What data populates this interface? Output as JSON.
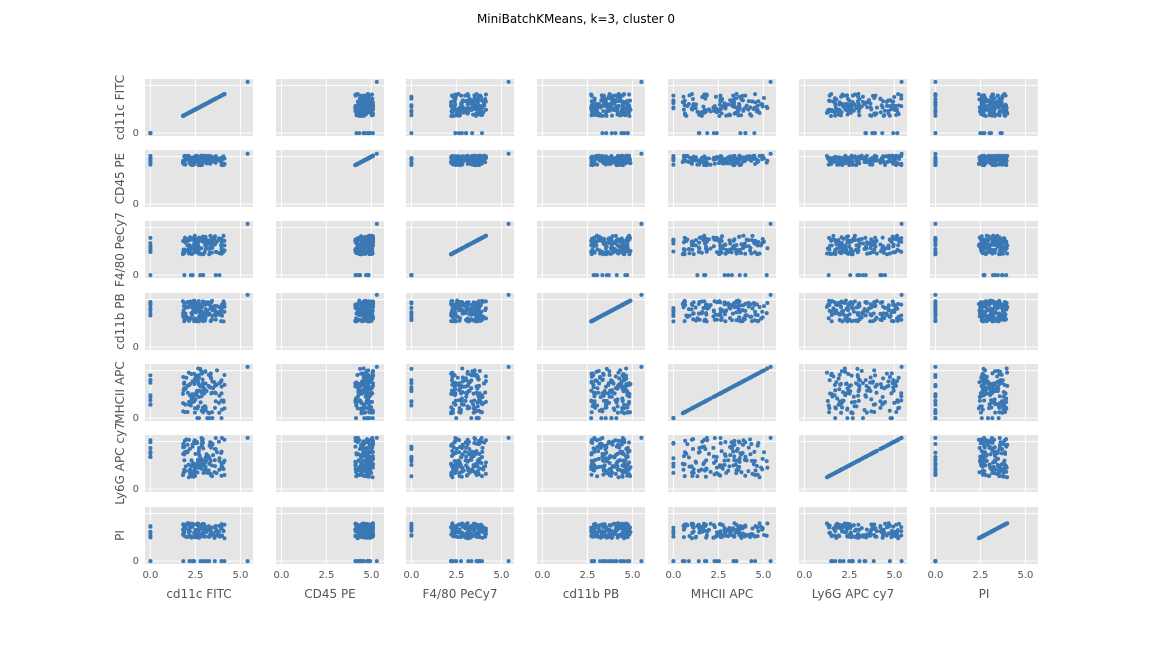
{
  "title": "MiniBatchKMeans, k=3, cluster 0",
  "variables": [
    "cd11c FITC",
    "CD45 PE",
    "F4/80 PeCy7",
    "cd11b PB",
    "MHCII APC",
    "Ly6G APC cy7",
    "PI"
  ],
  "colors": {
    "point": "#3a78b5",
    "panel": "#e5e5e5",
    "grid": "#ffffff",
    "text": "#555555"
  },
  "chart_data": {
    "type": "scatter",
    "subtype": "scatter-matrix",
    "title": "MiniBatchKMeans, k=3, cluster 0",
    "x_ticks": {
      "cd11c FITC": [
        "0.0",
        "2.5",
        "5.0"
      ],
      "CD45 PE": [
        "0.0",
        "2.5",
        "5.0"
      ],
      "F4/80 PeCy7": [
        "0.0",
        "2.5",
        "5.0"
      ],
      "cd11b PB": [
        "0.0",
        "2.5",
        "5.0"
      ],
      "MHCII APC": [
        "0.0",
        "2.5",
        "5.0"
      ],
      "Ly6G APC cy7": [
        "0.0",
        "2.5",
        "5.0"
      ],
      "PI": [
        "0.0",
        "2.5",
        "5.0"
      ]
    },
    "y_tick": "0",
    "xlim": [
      -0.3,
      5.7
    ],
    "ylim": [
      -0.3,
      5.7
    ],
    "distributions": {
      "cd11c FITC": {
        "main": [
          1.8,
          4.2
        ],
        "zero_fraction": 0.1,
        "outlier": 5.4
      },
      "CD45 PE": {
        "main": [
          4.1,
          5.1
        ],
        "zero_fraction": 0.0,
        "outlier": 5.3
      },
      "F4/80 PeCy7": {
        "main": [
          2.2,
          4.2
        ],
        "zero_fraction": 0.05,
        "outlier": 5.4
      },
      "cd11b PB": {
        "main": [
          2.7,
          4.9
        ],
        "zero_fraction": 0.0,
        "outlier": 5.5
      },
      "MHCII APC": {
        "main": [
          0.5,
          5.3
        ],
        "zero_fraction": 0.05,
        "outlier": 5.4
      },
      "Ly6G APC cy7": {
        "main": [
          1.2,
          5.4
        ],
        "zero_fraction": 0.0,
        "outlier": 5.4
      },
      "PI": {
        "main": [
          2.4,
          4.0
        ],
        "zero_fraction": 0.15,
        "outlier": 0.0
      }
    }
  }
}
